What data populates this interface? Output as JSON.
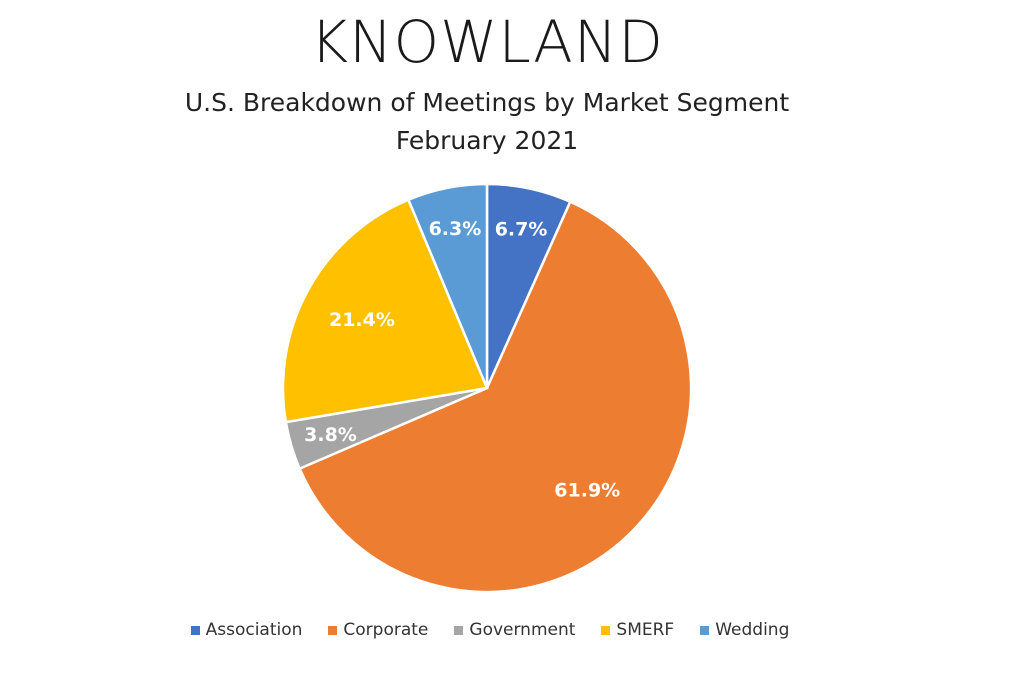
{
  "header": {
    "brand": "KNOWLAND",
    "title": "U.S. Breakdown of Meetings by Market Segment",
    "subtitle": "February 2021"
  },
  "chart_data": {
    "type": "pie",
    "title": "U.S. Breakdown of Meetings by Market Segment",
    "subtitle": "February 2021",
    "categories": [
      "Association",
      "Corporate",
      "Government",
      "SMERF",
      "Wedding"
    ],
    "values": [
      6.7,
      61.9,
      3.8,
      21.4,
      6.3
    ],
    "labels": [
      "6.7%",
      "61.9%",
      "3.8%",
      "21.4%",
      "6.3%"
    ],
    "colors": [
      "#4472C4",
      "#ED7D31",
      "#A5A5A5",
      "#FFC000",
      "#5B9BD5"
    ],
    "start_angle_deg": 0,
    "direction": "clockwise",
    "legend_position": "bottom"
  },
  "legend": {
    "items": [
      {
        "label": "Association",
        "color": "#4472C4"
      },
      {
        "label": "Corporate",
        "color": "#ED7D31"
      },
      {
        "label": "Government",
        "color": "#A5A5A5"
      },
      {
        "label": "SMERF",
        "color": "#FFC000"
      },
      {
        "label": "Wedding",
        "color": "#5B9BD5"
      }
    ]
  }
}
